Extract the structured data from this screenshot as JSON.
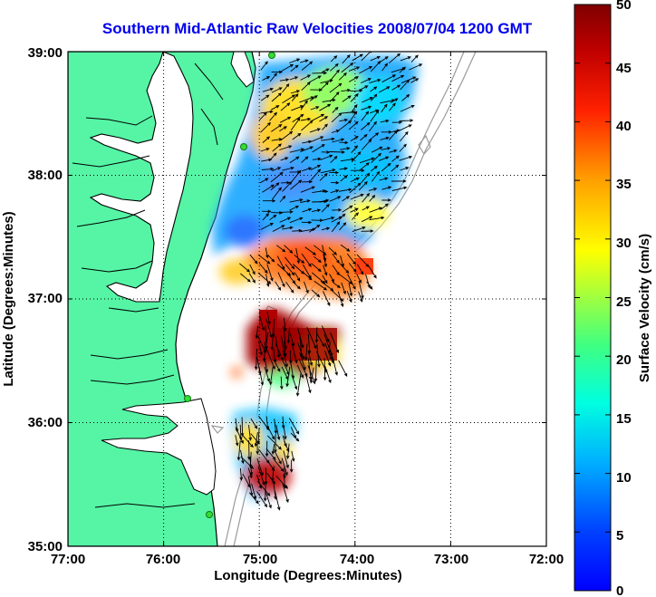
{
  "title": "Southern Mid-Atlantic Raw Velocities 2008/07/04 1200 GMT",
  "xlabel": "Longitude (Degrees:Minutes)",
  "ylabel": "Latitude (Degrees:Minutes)",
  "colorbar_label": "Surface Velocity (cm/s)",
  "x_ticks": [
    "77:00",
    "76:00",
    "75:00",
    "74:00",
    "73:00",
    "72:00"
  ],
  "y_ticks": [
    "39:00",
    "38:00",
    "37:00",
    "36:00",
    "35:00"
  ],
  "colorbar_ticks": [
    "50",
    "45",
    "40",
    "35",
    "30",
    "25",
    "20",
    "15",
    "10",
    "5",
    "0"
  ],
  "colors": {
    "title": "#0000ee",
    "land": "#55f5a5",
    "coastline": "#000000",
    "bathymetry": "#9a9a9a",
    "site_marker": "#33dd33",
    "grid": "#000000"
  },
  "map": {
    "lon_range": [
      -77,
      -72
    ],
    "lat_range": [
      35,
      39
    ],
    "grid": "dotted",
    "velocity_range_cm_s": [
      0,
      50
    ],
    "colormap": "jet"
  }
}
